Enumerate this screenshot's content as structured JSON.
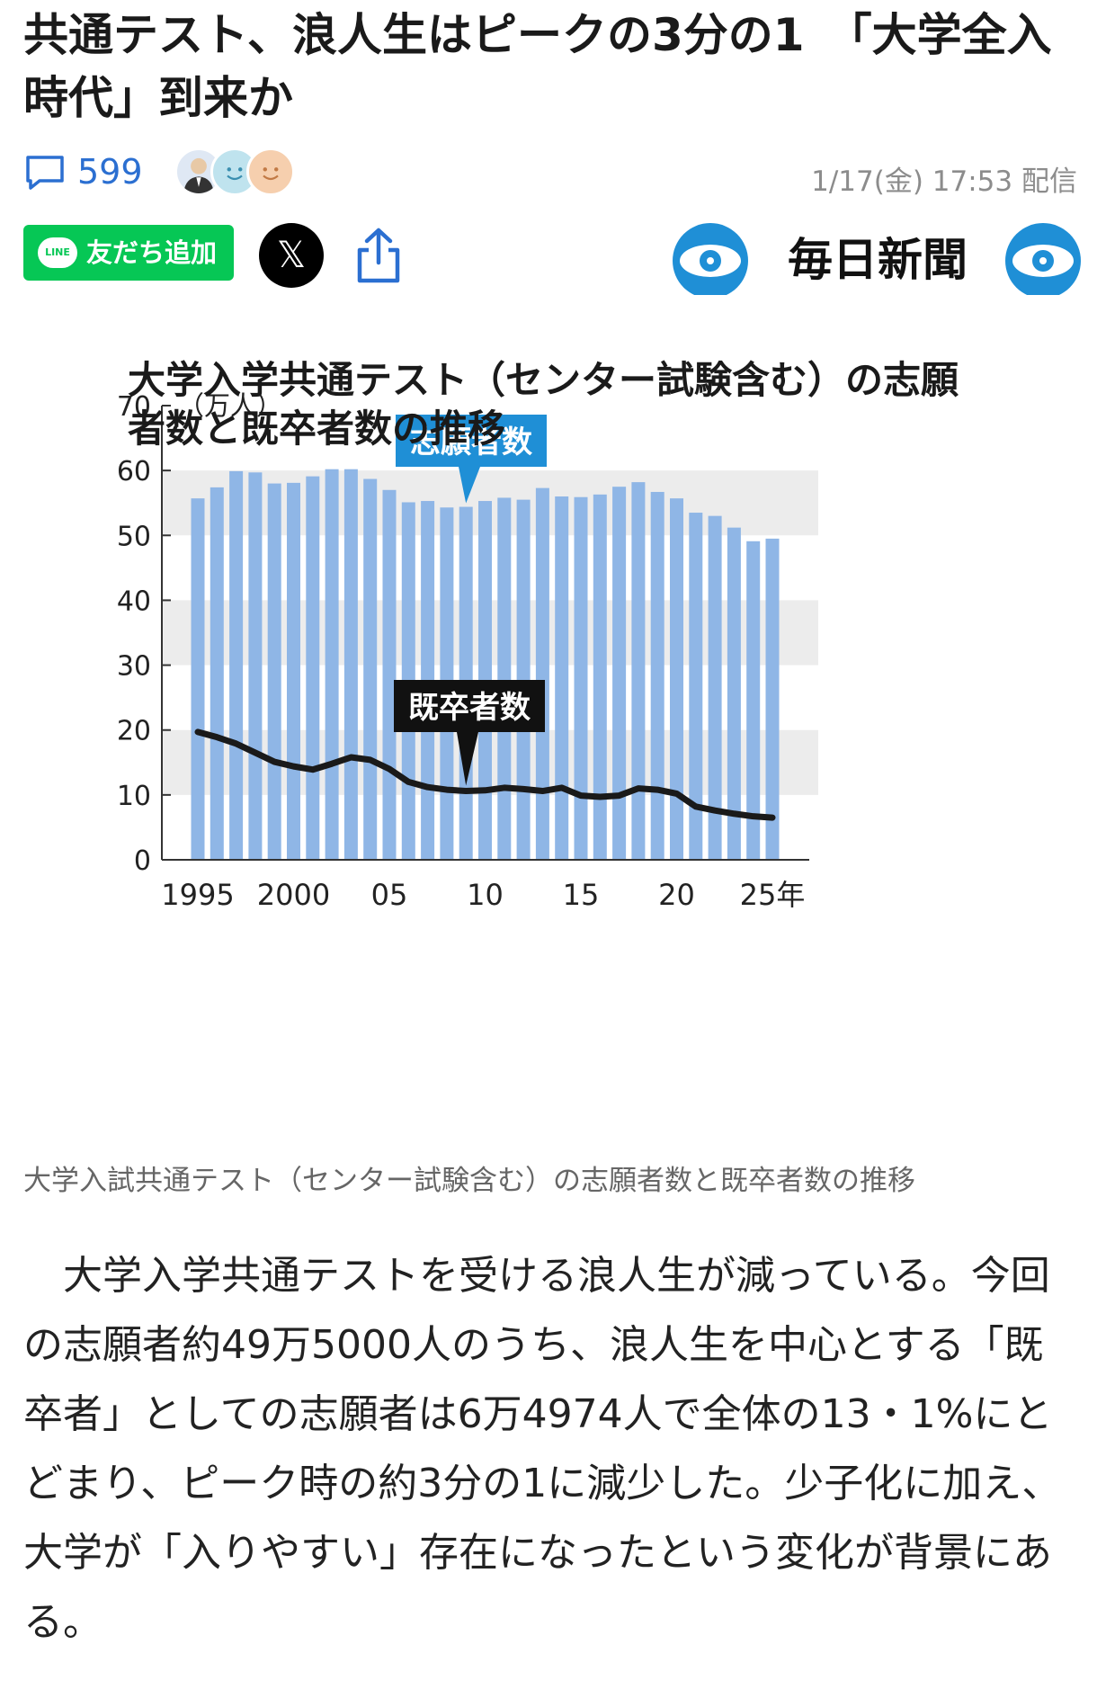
{
  "article": {
    "headline": "共通テスト、浪人生はピークの3分の1　「大学全入時代」到来か",
    "comment_count": "599",
    "date": "1/17(金) 17:53 配信",
    "publisher": "毎日新聞",
    "line_button_label": "友だち追加",
    "line_badge": "LINE",
    "x_label": "𝕏",
    "caption": "大学入試共通テスト（センター試験含む）の志願者数と既卒者数の推移",
    "body": "　大学入学共通テストを受ける浪人生が減っている。今回の志願者約49万5000人のうち、浪人生を中心とする「既卒者」としての志願者は6万4974人で全体の13・1%にとどまり、ピーク時の約3分の1に減少した。少子化に加え、大学が「入りやすい」存在になったという変化が背景にある。"
  },
  "colors": {
    "bar": "#8fb6e6",
    "line": "#1a1a1a",
    "callout_blue": "#1f8fd6",
    "logo_blue": "#1f8fd6",
    "line_green": "#06c755",
    "link_blue": "#2b6fd1"
  },
  "chart_data": {
    "type": "bar",
    "title": "大学入学共通テスト（センター試験含む）の志願者数と既卒者数の推移",
    "unit": "（万人）",
    "ylim": [
      0,
      70
    ],
    "yticks": [
      "0",
      "10",
      "20",
      "30",
      "40",
      "50",
      "60",
      "70"
    ],
    "xtick_labels": [
      {
        "year": 1995,
        "label": "1995"
      },
      {
        "year": 2000,
        "label": "2000"
      },
      {
        "year": 2005,
        "label": "05"
      },
      {
        "year": 2010,
        "label": "10"
      },
      {
        "year": 2015,
        "label": "15"
      },
      {
        "year": 2020,
        "label": "20"
      },
      {
        "year": 2025,
        "label": "25年"
      }
    ],
    "years": [
      1995,
      1996,
      1997,
      1998,
      1999,
      2000,
      2001,
      2002,
      2003,
      2004,
      2005,
      2006,
      2007,
      2008,
      2009,
      2010,
      2011,
      2012,
      2013,
      2014,
      2015,
      2016,
      2017,
      2018,
      2019,
      2020,
      2021,
      2022,
      2023,
      2024,
      2025
    ],
    "series": [
      {
        "name": "志願者数",
        "type": "bar",
        "values": [
          55.7,
          57.4,
          59.9,
          59.7,
          58.0,
          58.1,
          59.1,
          60.2,
          60.2,
          58.7,
          57.0,
          55.1,
          55.3,
          54.3,
          54.4,
          55.3,
          55.8,
          55.5,
          57.3,
          56.0,
          55.9,
          56.3,
          57.5,
          58.2,
          56.7,
          55.7,
          53.5,
          53.0,
          51.2,
          49.1,
          49.5
        ]
      },
      {
        "name": "既卒者数",
        "type": "line",
        "values": [
          19.7,
          18.9,
          17.9,
          16.5,
          15.1,
          14.4,
          13.9,
          14.8,
          15.8,
          15.4,
          14.0,
          12.0,
          11.2,
          10.8,
          10.6,
          10.7,
          11.1,
          10.9,
          10.6,
          11.1,
          9.9,
          9.7,
          9.9,
          11.0,
          10.8,
          10.2,
          8.2,
          7.6,
          7.1,
          6.7,
          6.5
        ]
      }
    ]
  }
}
